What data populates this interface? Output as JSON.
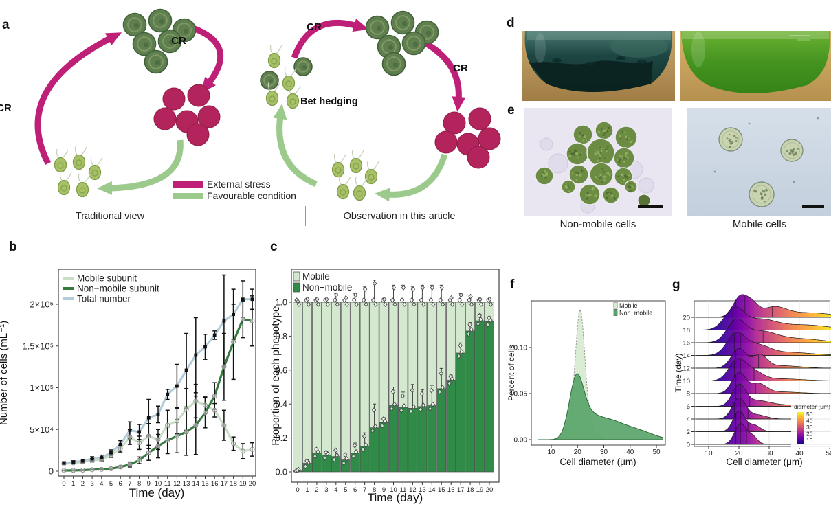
{
  "figure": {
    "panel_labels": {
      "a": "a",
      "b": "b",
      "c": "c",
      "d": "d",
      "e": "e",
      "f": "f",
      "g": "g"
    },
    "panel_a": {
      "captions": {
        "left": "Traditional view",
        "right": "Observation in this article"
      },
      "cr_label": "CR",
      "bet_hedging_label": "Bet hedging",
      "legend": [
        {
          "label": "External stress",
          "color": "#bf2077"
        },
        {
          "label": "Favourable condition",
          "color": "#9cc98c"
        }
      ],
      "colors": {
        "stress_arrow": "#bf2077",
        "favourable_arrow": "#9cc98c",
        "non_mobile_body": "#5f7f4e",
        "non_mobile_edge": "#41603a",
        "non_mobile_ring": "#93aa76",
        "mobile_body": "#a7c166",
        "mobile_edge": "#7f9b48",
        "flagella": "#c9d2b8",
        "stressed_body": "#b3245c",
        "stressed_edge": "#8f1c49"
      }
    },
    "panel_e": {
      "captions": {
        "left": "Non-mobile cells",
        "right": "Mobile cells"
      }
    }
  },
  "chart_data": [
    {
      "panel": "b",
      "type": "line",
      "xlabel": "Time (day)",
      "ylabel": "Number of cells (mL⁻¹)",
      "x": [
        0,
        1,
        2,
        3,
        4,
        5,
        6,
        7,
        8,
        9,
        10,
        11,
        12,
        13,
        14,
        15,
        16,
        17,
        18,
        19,
        20
      ],
      "ylim": [
        -5000,
        235000
      ],
      "yticks": {
        "values": [
          0,
          50000,
          100000,
          150000,
          200000
        ],
        "labels": [
          "0",
          "5×10⁴",
          "1×10⁵",
          "1.5×10⁵",
          "2×10⁵"
        ]
      },
      "legend_position": "top-left",
      "series": [
        {
          "name": "Mobile subunit",
          "color": "#c9dfc5",
          "marker": "circle",
          "values": [
            9000,
            10000,
            11000,
            13000,
            14000,
            19000,
            27000,
            41000,
            34000,
            42000,
            38000,
            55000,
            60000,
            74000,
            84000,
            79000,
            73000,
            55000,
            33000,
            24000,
            26000
          ],
          "errors": [
            1000,
            1200,
            1500,
            2000,
            2000,
            2500,
            4000,
            9000,
            8000,
            15000,
            12000,
            18000,
            15000,
            25000,
            20000,
            10000,
            8000,
            18000,
            8000,
            9000,
            8000
          ]
        },
        {
          "name": "Non−mobile subunit",
          "color": "#36793f",
          "marker": "circle",
          "values": [
            800,
            900,
            1200,
            1800,
            2200,
            3000,
            5000,
            8000,
            13000,
            22000,
            30000,
            37000,
            42000,
            47000,
            55000,
            70000,
            90000,
            125000,
            155000,
            182000,
            180000
          ],
          "errors": [
            300,
            300,
            400,
            500,
            600,
            800,
            1500,
            3000,
            4000,
            9000,
            14000,
            16000,
            20000,
            28000,
            35000,
            18000,
            16000,
            40000,
            45000,
            22000,
            30000
          ]
        },
        {
          "name": "Total number",
          "color": "#b3ccd9",
          "marker": "square",
          "values": [
            9800,
            10900,
            12200,
            14800,
            16200,
            22000,
            32000,
            49000,
            47000,
            64000,
            68000,
            92000,
            102000,
            121000,
            139000,
            149000,
            163000,
            180000,
            188000,
            206000,
            206000
          ],
          "errors": [
            1500,
            1500,
            2000,
            2500,
            3000,
            3500,
            4500,
            10000,
            9000,
            22000,
            10000,
            6000,
            26000,
            44000,
            45000,
            15000,
            5000,
            55000,
            30000,
            22000,
            12000
          ]
        }
      ]
    },
    {
      "panel": "c",
      "type": "stacked-bar",
      "xlabel": "Time (day)",
      "ylabel": "Proportion of each phenotype",
      "categories": [
        0,
        1,
        2,
        3,
        4,
        5,
        6,
        7,
        8,
        9,
        10,
        11,
        12,
        13,
        14,
        15,
        16,
        17,
        18,
        19,
        20
      ],
      "yticks": [
        "0.0",
        "0.2",
        "0.4",
        "0.6",
        "0.8",
        "1.0"
      ],
      "series": [
        {
          "name": "Mobile",
          "color": "#d4e7cf",
          "values": [
            0.995,
            0.95,
            0.89,
            0.9,
            0.91,
            0.93,
            0.89,
            0.85,
            0.74,
            0.71,
            0.61,
            0.62,
            0.625,
            0.615,
            0.61,
            0.51,
            0.46,
            0.3,
            0.17,
            0.11,
            0.115
          ],
          "top_errors": [
            0.005,
            0.02,
            0.02,
            0.02,
            0.05,
            0.03,
            0.05,
            0.09,
            0.13,
            0.02,
            0.1,
            0.1,
            0.09,
            0.1,
            0.1,
            0.1,
            0.03,
            0.05,
            0.04,
            0.02,
            0.02
          ]
        },
        {
          "name": "Non−mobile",
          "color": "#2f8b47",
          "values": [
            0.005,
            0.05,
            0.11,
            0.1,
            0.09,
            0.07,
            0.11,
            0.15,
            0.26,
            0.29,
            0.39,
            0.38,
            0.375,
            0.385,
            0.39,
            0.49,
            0.54,
            0.7,
            0.83,
            0.89,
            0.885
          ],
          "errors": [
            0.005,
            0.02,
            0.03,
            0.02,
            0.05,
            0.04,
            0.06,
            0.08,
            0.14,
            0.03,
            0.11,
            0.09,
            0.14,
            0.1,
            0.12,
            0.12,
            0.03,
            0.06,
            0.05,
            0.04,
            0.03
          ]
        }
      ]
    },
    {
      "panel": "f",
      "type": "area",
      "xlabel": "Cell diameter (μm)",
      "ylabel": "Percent of cells",
      "xticks": [
        10,
        20,
        30,
        40,
        50
      ],
      "yticks": {
        "values": [
          0.0,
          0.05,
          0.1
        ],
        "labels": [
          "0.00",
          "0.05",
          "0.10"
        ]
      },
      "series": [
        {
          "name": "Mobile",
          "color": "#d9ebd2",
          "peak_x": 21,
          "peak_y": 0.138,
          "components": [
            {
              "m": 21,
              "s": 1.7,
              "a": 0.126
            },
            {
              "m": 18,
              "s": 2.2,
              "a": 0.02
            },
            {
              "m": 24,
              "s": 2.3,
              "a": 0.018
            }
          ]
        },
        {
          "name": "Non−mobile",
          "color": "#57a368",
          "peak_x": 19.5,
          "peak_y": 0.075,
          "components": [
            {
              "m": 19.5,
              "s": 2.7,
              "a": 0.062
            },
            {
              "m": 24,
              "s": 3.5,
              "a": 0.016
            },
            {
              "m": 30,
              "s": 5,
              "a": 0.016
            },
            {
              "m": 38,
              "s": 6,
              "a": 0.011
            },
            {
              "m": 46,
              "s": 5,
              "a": 0.004
            }
          ]
        }
      ]
    },
    {
      "panel": "g",
      "type": "ridgeline",
      "xlabel": "Cell diameter (μm)",
      "ylabel": "Time (day)",
      "xticks": [
        10,
        20,
        30,
        40,
        50
      ],
      "yticks": [
        0,
        2,
        4,
        6,
        8,
        10,
        12,
        14,
        16,
        18,
        20
      ],
      "colorbar": {
        "title": "diameter (μm)",
        "ticks": [
          50,
          40,
          30,
          20,
          10
        ],
        "palette": [
          "#0d0887",
          "#6a00a8",
          "#b12a90",
          "#e16462",
          "#fca636",
          "#f0f921"
        ]
      },
      "ridges": [
        {
          "day": 0,
          "components": [
            {
              "m": 20.5,
              "s": 1.9,
              "a": 1.0
            },
            {
              "m": 24.5,
              "s": 1.6,
              "a": 0.38
            }
          ],
          "quantiles": [
            19,
            20.5,
            22.5
          ]
        },
        {
          "day": 2,
          "components": [
            {
              "m": 20,
              "s": 1.9,
              "a": 1.0
            },
            {
              "m": 25,
              "s": 2.0,
              "a": 0.32
            }
          ],
          "quantiles": [
            19,
            20.5,
            23
          ]
        },
        {
          "day": 4,
          "components": [
            {
              "m": 20,
              "s": 2.2,
              "a": 1.0
            },
            {
              "m": 26,
              "s": 3.0,
              "a": 0.2
            }
          ],
          "quantiles": [
            18.5,
            20.5,
            23
          ]
        },
        {
          "day": 6,
          "components": [
            {
              "m": 20,
              "s": 2.2,
              "a": 1.0
            },
            {
              "m": 26,
              "s": 4.0,
              "a": 0.25
            },
            {
              "m": 34,
              "s": 6,
              "a": 0.06
            }
          ],
          "quantiles": [
            19,
            20.5,
            23.5
          ]
        },
        {
          "day": 8,
          "components": [
            {
              "m": 20,
              "s": 2.3,
              "a": 1.0
            },
            {
              "m": 26.5,
              "s": 2.6,
              "a": 0.45
            },
            {
              "m": 34,
              "s": 6,
              "a": 0.08
            }
          ],
          "quantiles": [
            19,
            21,
            25.5
          ]
        },
        {
          "day": 10,
          "components": [
            {
              "m": 19.5,
              "s": 2.8,
              "a": 1.0
            },
            {
              "m": 25,
              "s": 3.0,
              "a": 0.4
            },
            {
              "m": 34,
              "s": 7,
              "a": 0.1
            }
          ],
          "quantiles": [
            18.5,
            20.5,
            25
          ]
        },
        {
          "day": 12,
          "components": [
            {
              "m": 20,
              "s": 2.5,
              "a": 0.95
            },
            {
              "m": 27,
              "s": 2.3,
              "a": 0.6
            },
            {
              "m": 34,
              "s": 6,
              "a": 0.12
            }
          ],
          "quantiles": [
            19,
            21,
            26.5
          ]
        },
        {
          "day": 14,
          "components": [
            {
              "m": 19,
              "s": 3.0,
              "a": 1.0
            },
            {
              "m": 26,
              "s": 4.0,
              "a": 0.45
            },
            {
              "m": 36,
              "s": 8,
              "a": 0.15
            }
          ],
          "quantiles": [
            18.5,
            20.5,
            26
          ]
        },
        {
          "day": 16,
          "components": [
            {
              "m": 19,
              "s": 3.0,
              "a": 1.0
            },
            {
              "m": 27,
              "s": 5.0,
              "a": 0.5
            },
            {
              "m": 39,
              "s": 8,
              "a": 0.2
            }
          ],
          "quantiles": [
            18,
            21,
            28
          ]
        },
        {
          "day": 18,
          "components": [
            {
              "m": 18.5,
              "s": 3.2,
              "a": 1.0
            },
            {
              "m": 27,
              "s": 5.0,
              "a": 0.45
            },
            {
              "m": 41,
              "s": 9,
              "a": 0.25
            }
          ],
          "quantiles": [
            18,
            21,
            29
          ]
        },
        {
          "day": 20,
          "components": [
            {
              "m": 20.5,
              "s": 2.4,
              "a": 1.0
            },
            {
              "m": 24.5,
              "s": 2.0,
              "a": 0.5
            },
            {
              "m": 31.5,
              "s": 4.0,
              "a": 0.45
            },
            {
              "m": 43,
              "s": 8,
              "a": 0.22
            }
          ],
          "quantiles": [
            19,
            22,
            31
          ]
        }
      ]
    }
  ]
}
